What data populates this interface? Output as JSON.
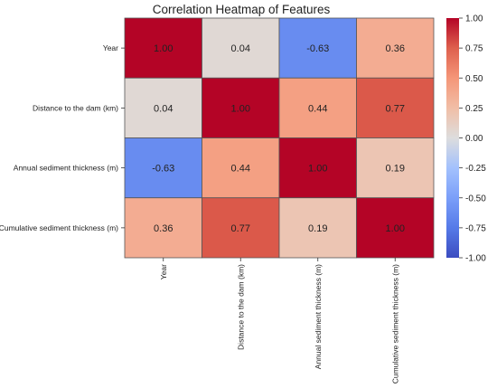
{
  "chart_data": {
    "type": "heatmap",
    "title": "Correlation Heatmap of Features",
    "row_labels": [
      "Year",
      "Distance to the dam (km)",
      "Annual sediment thickness (m)",
      "Cumulative sediment thickness (m)"
    ],
    "col_labels": [
      "Year",
      "Distance to the dam (km)",
      "Annual sediment thickness (m)",
      "Cumulative sediment thickness (m)"
    ],
    "values": [
      [
        1.0,
        0.04,
        -0.63,
        0.36
      ],
      [
        0.04,
        1.0,
        0.44,
        0.77
      ],
      [
        -0.63,
        0.44,
        1.0,
        0.19
      ],
      [
        0.36,
        0.77,
        0.19,
        1.0
      ]
    ],
    "annotation_format": "0.00",
    "colormap": "coolwarm",
    "colorbar": {
      "vmin": -1.0,
      "vmax": 1.0,
      "ticks": [
        "-1.00",
        "-0.75",
        "-0.50",
        "-0.25",
        "0.00",
        "0.25",
        "0.50",
        "0.75",
        "1.00"
      ],
      "tick_values": [
        -1.0,
        -0.75,
        -0.5,
        -0.25,
        0.0,
        0.25,
        0.5,
        0.75,
        1.0
      ]
    },
    "grid": true,
    "cell_border_color": "#555555",
    "legend": "colorbar-right"
  }
}
